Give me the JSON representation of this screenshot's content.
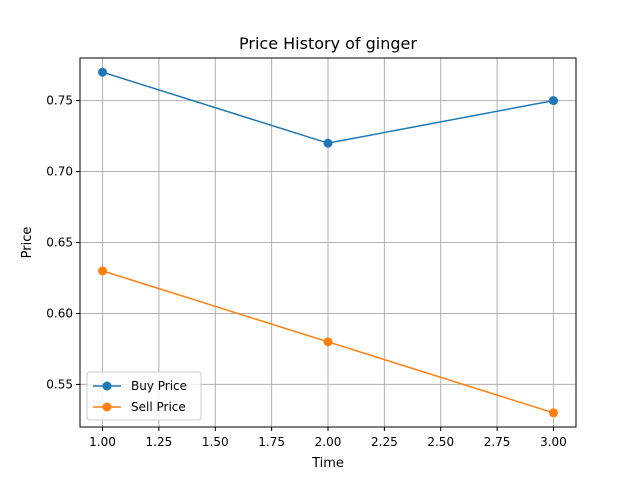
{
  "chart_data": {
    "type": "line",
    "title": "Price History of ginger",
    "xlabel": "Time",
    "ylabel": "Price",
    "x": [
      1.0,
      2.0,
      3.0
    ],
    "series": [
      {
        "name": "Buy Price",
        "values": [
          0.77,
          0.72,
          0.75
        ],
        "color": "#1f77b4"
      },
      {
        "name": "Sell Price",
        "values": [
          0.63,
          0.58,
          0.53
        ],
        "color": "#ff7f0e"
      }
    ],
    "xlim": [
      0.9,
      3.1
    ],
    "ylim": [
      0.52,
      0.78
    ],
    "x_ticks": [
      "1.00",
      "1.25",
      "1.50",
      "1.75",
      "2.00",
      "2.25",
      "2.50",
      "2.75",
      "3.00"
    ],
    "y_ticks": [
      "0.55",
      "0.60",
      "0.65",
      "0.70",
      "0.75"
    ],
    "grid": true,
    "legend_position": "lower-left"
  }
}
